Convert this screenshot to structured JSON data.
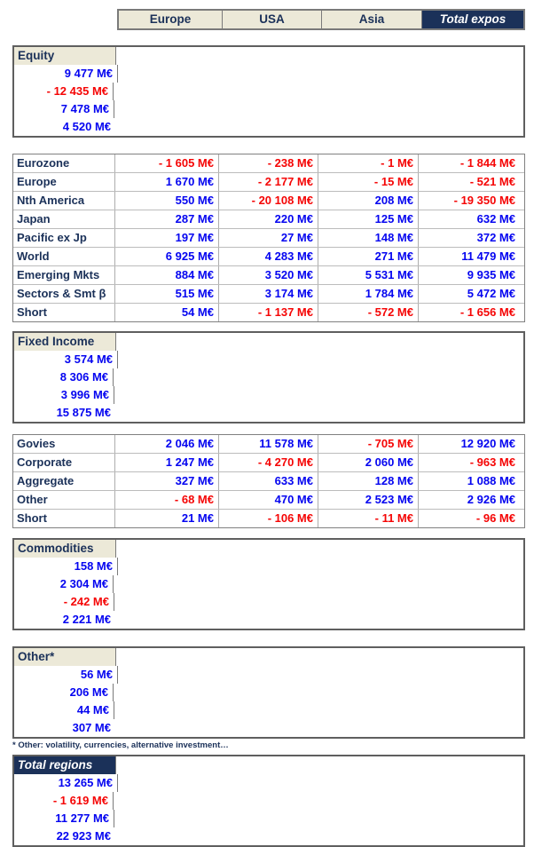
{
  "header": {
    "columns": [
      "Europe",
      "USA",
      "Asia",
      "Total expos"
    ]
  },
  "equity": {
    "label": "Equity",
    "values": [
      "9 477 M€",
      "- 12 435 M€",
      "7 478 M€",
      "4 520 M€"
    ]
  },
  "equityRows": [
    {
      "label": "Eurozone",
      "values": [
        "- 1 605 M€",
        "- 238 M€",
        "- 1 M€",
        "- 1 844 M€"
      ]
    },
    {
      "label": "Europe",
      "values": [
        "1 670 M€",
        "- 2 177 M€",
        "- 15 M€",
        "- 521 M€"
      ]
    },
    {
      "label": "Nth America",
      "values": [
        "550 M€",
        "- 20 108 M€",
        "208 M€",
        "- 19 350 M€"
      ]
    },
    {
      "label": "Japan",
      "values": [
        "287 M€",
        "220 M€",
        "125 M€",
        "632 M€"
      ]
    },
    {
      "label": "Pacific ex Jp",
      "values": [
        "197 M€",
        "27 M€",
        "148 M€",
        "372 M€"
      ]
    },
    {
      "label": "World",
      "values": [
        "6 925 M€",
        "4 283 M€",
        "271 M€",
        "11 479 M€"
      ]
    },
    {
      "label": "Emerging Mkts",
      "values": [
        "884 M€",
        "3 520 M€",
        "5 531 M€",
        "9 935 M€"
      ]
    },
    {
      "label": "Sectors & Smt β",
      "values": [
        "515 M€",
        "3 174 M€",
        "1 784 M€",
        "5 472 M€"
      ]
    },
    {
      "label": "Short",
      "values": [
        "54 M€",
        "- 1 137 M€",
        "- 572 M€",
        "- 1 656 M€"
      ]
    }
  ],
  "fixedIncome": {
    "label": "Fixed Income",
    "values": [
      "3 574 M€",
      "8 306 M€",
      "3 996 M€",
      "15 875 M€"
    ]
  },
  "fixedIncomeRows": [
    {
      "label": "Govies",
      "values": [
        "2 046 M€",
        "11 578 M€",
        "- 705 M€",
        "12 920 M€"
      ]
    },
    {
      "label": "Corporate",
      "values": [
        "1 247 M€",
        "- 4 270 M€",
        "2 060 M€",
        "- 963 M€"
      ]
    },
    {
      "label": "Aggregate",
      "values": [
        "327 M€",
        "633 M€",
        "128 M€",
        "1 088 M€"
      ]
    },
    {
      "label": "Other",
      "values": [
        "- 68 M€",
        "470 M€",
        "2 523 M€",
        "2 926 M€"
      ]
    },
    {
      "label": "Short",
      "values": [
        "21 M€",
        "- 106 M€",
        "- 11 M€",
        "- 96 M€"
      ]
    }
  ],
  "commodities": {
    "label": "Commodities",
    "values": [
      "158 M€",
      "2 304 M€",
      "- 242 M€",
      "2 221 M€"
    ]
  },
  "other": {
    "label": "Other*",
    "values": [
      "56 M€",
      "206 M€",
      "44 M€",
      "307 M€"
    ],
    "footnote": "* Other: volatility, currencies, alternative investment…"
  },
  "totalRegions": {
    "label": "Total regions",
    "values": [
      "13 265 M€",
      "- 1 619 M€",
      "11 277 M€",
      "22 923 M€"
    ]
  },
  "colors": {
    "navy": "#1b3159",
    "beige": "#ece9d8",
    "positive_value": "#0404f0",
    "negative_value": "#f50505",
    "grid": "#808080"
  }
}
